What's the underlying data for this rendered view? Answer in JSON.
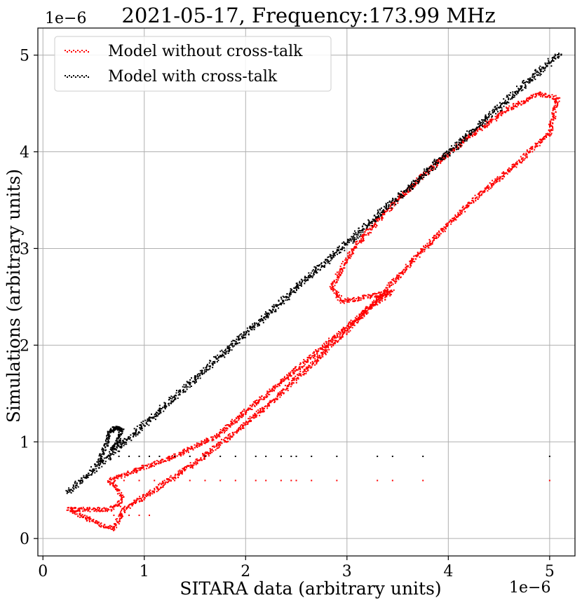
{
  "chart_data": {
    "type": "scatter",
    "title": "2021-05-17, Frequency:173.99 MHz",
    "xlabel": "SITARA data (arbitrary units)",
    "ylabel": "Simulations (arbitrary units)",
    "x_offset_label": "1e−6",
    "y_offset_label": "1e−6",
    "xlim": [
      -0.05,
      5.25
    ],
    "ylim": [
      -0.18,
      5.28
    ],
    "x_ticks": [
      0,
      1,
      2,
      3,
      4,
      5
    ],
    "x_tick_labels": [
      "0",
      "1",
      "2",
      "3",
      "4",
      "5"
    ],
    "y_ticks": [
      0,
      1,
      2,
      3,
      4,
      5
    ],
    "y_tick_labels": [
      "0",
      "1",
      "2",
      "3",
      "4",
      "5"
    ],
    "grid": true,
    "legend_position": "top-left",
    "series": [
      {
        "name": "Model without cross-talk",
        "color": "#ff0000",
        "description_points": {
          "loop_path": [
            [
              0.7,
              0.1
            ],
            [
              0.6,
              0.13
            ],
            [
              0.45,
              0.2
            ],
            [
              0.3,
              0.28
            ],
            [
              0.25,
              0.3
            ],
            [
              0.45,
              0.3
            ],
            [
              0.65,
              0.3
            ],
            [
              0.75,
              0.35
            ],
            [
              0.78,
              0.45
            ],
            [
              0.7,
              0.55
            ],
            [
              0.65,
              0.6
            ],
            [
              0.9,
              0.7
            ],
            [
              1.3,
              0.85
            ],
            [
              1.7,
              1.05
            ],
            [
              2.1,
              1.4
            ],
            [
              2.5,
              1.75
            ],
            [
              2.9,
              2.1
            ],
            [
              3.3,
              2.45
            ],
            [
              3.45,
              2.55
            ],
            [
              3.2,
              2.5
            ],
            [
              2.95,
              2.45
            ],
            [
              2.85,
              2.6
            ],
            [
              2.95,
              2.8
            ],
            [
              3.1,
              3.05
            ],
            [
              3.4,
              3.4
            ],
            [
              3.8,
              3.8
            ],
            [
              4.2,
              4.15
            ],
            [
              4.6,
              4.45
            ],
            [
              4.9,
              4.6
            ],
            [
              5.08,
              4.55
            ],
            [
              5.0,
              4.2
            ],
            [
              4.7,
              3.9
            ],
            [
              4.3,
              3.55
            ],
            [
              3.9,
              3.15
            ],
            [
              3.5,
              2.7
            ],
            [
              3.1,
              2.25
            ],
            [
              2.7,
              1.85
            ],
            [
              2.3,
              1.45
            ],
            [
              1.9,
              1.1
            ],
            [
              1.5,
              0.78
            ],
            [
              1.1,
              0.5
            ],
            [
              0.8,
              0.3
            ],
            [
              0.7,
              0.1
            ]
          ],
          "sparse_row_y": 0.6,
          "sparse_row_x": [
            0.8,
            0.95,
            1.1,
            1.2,
            1.3,
            1.45,
            1.6,
            1.75,
            1.9,
            2.1,
            2.2,
            2.35,
            2.45,
            2.5,
            2.65,
            2.9,
            3.3,
            3.45,
            3.75,
            5.0
          ],
          "low_row_y": 0.24,
          "low_row_x": [
            0.7,
            0.78,
            0.85,
            0.95,
            1.05
          ]
        }
      },
      {
        "name": "Model with cross-talk",
        "color": "#000000",
        "description_points": {
          "line_from": [
            0.25,
            0.48
          ],
          "line_to": [
            5.1,
            5.02
          ],
          "hook_path": [
            [
              0.55,
              0.8
            ],
            [
              0.62,
              0.95
            ],
            [
              0.66,
              1.1
            ],
            [
              0.72,
              1.15
            ],
            [
              0.78,
              1.12
            ],
            [
              0.74,
              1.0
            ],
            [
              0.68,
              0.92
            ]
          ],
          "sparse_row_y": 0.85,
          "sparse_row_x": [
            0.75,
            0.85,
            0.95,
            1.05,
            1.15,
            1.3,
            1.45,
            1.6,
            1.75,
            1.9,
            2.1,
            2.2,
            2.35,
            2.45,
            2.5,
            2.65,
            2.9,
            3.3,
            3.45,
            3.75,
            5.0
          ]
        }
      }
    ]
  }
}
